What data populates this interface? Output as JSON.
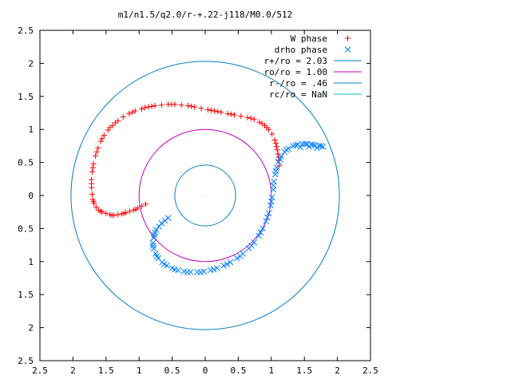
{
  "chart_data": {
    "type": "scatter",
    "title": "m1/n1.5/q2.0/r-+.22-j118/M0.0/512",
    "xlabel": "",
    "ylabel": "",
    "xlim": [
      -2.5,
      2.5
    ],
    "ylim": [
      -2.5,
      2.5
    ],
    "x_ticks": [
      -2.5,
      -2,
      -1.5,
      -1,
      -0.5,
      0,
      0.5,
      1,
      1.5,
      2,
      2.5
    ],
    "y_ticks": [
      -2.5,
      -2,
      -1.5,
      -1,
      -0.5,
      0,
      0.5,
      1,
      1.5,
      2,
      2.5
    ],
    "x_tick_labels": [
      "2.5",
      "2",
      "1.5",
      "1",
      "0.5",
      "0",
      "0.5",
      "1",
      "1.5",
      "2",
      "2.5"
    ],
    "y_tick_labels": [
      "2.5",
      "2",
      "1.5",
      "1",
      "0.5",
      "0",
      "0.5",
      "1",
      "1.5",
      "2",
      "2.5"
    ],
    "grid": false,
    "legend_position": "top-right",
    "series": [
      {
        "name": "W phase",
        "marker": "plus",
        "color": "#ff0000",
        "points": [
          [
            -1.62,
            0.72
          ],
          [
            -1.66,
            0.6
          ],
          [
            -1.69,
            0.48
          ],
          [
            -1.71,
            0.36
          ],
          [
            -1.72,
            0.24
          ],
          [
            -1.72,
            0.12
          ],
          [
            -1.71,
            0.02
          ],
          [
            -1.7,
            -0.06
          ],
          [
            -1.68,
            -0.12
          ],
          [
            -1.65,
            -0.18
          ],
          [
            -1.61,
            -0.22
          ],
          [
            -1.56,
            -0.25
          ],
          [
            -1.5,
            -0.27
          ],
          [
            -1.44,
            -0.29
          ],
          [
            -1.38,
            -0.3
          ],
          [
            -1.32,
            -0.29
          ],
          [
            -1.26,
            -0.28
          ],
          [
            -1.2,
            -0.26
          ],
          [
            -1.14,
            -0.24
          ],
          [
            -1.08,
            -0.22
          ],
          [
            -1.02,
            -0.19
          ],
          [
            -0.96,
            -0.16
          ],
          [
            -0.9,
            -0.13
          ],
          [
            -1.58,
            0.82
          ],
          [
            -1.53,
            0.91
          ],
          [
            -1.47,
            0.99
          ],
          [
            -1.4,
            1.06
          ],
          [
            -1.32,
            1.13
          ],
          [
            -1.24,
            1.19
          ],
          [
            -1.15,
            1.24
          ],
          [
            -1.06,
            1.28
          ],
          [
            -0.96,
            1.31
          ],
          [
            -0.86,
            1.34
          ],
          [
            -0.76,
            1.36
          ],
          [
            -0.66,
            1.37
          ],
          [
            -0.56,
            1.38
          ],
          [
            -0.46,
            1.38
          ],
          [
            -0.36,
            1.37
          ],
          [
            -0.26,
            1.36
          ],
          [
            -0.16,
            1.34
          ],
          [
            -0.06,
            1.32
          ],
          [
            0.04,
            1.3
          ],
          [
            0.14,
            1.28
          ],
          [
            0.24,
            1.26
          ],
          [
            0.34,
            1.24
          ],
          [
            0.44,
            1.22
          ],
          [
            0.54,
            1.2
          ],
          [
            0.64,
            1.18
          ],
          [
            0.74,
            1.15
          ],
          [
            0.82,
            1.11
          ],
          [
            0.9,
            1.06
          ],
          [
            0.96,
            1.0
          ],
          [
            1.01,
            0.93
          ],
          [
            1.05,
            0.84
          ],
          [
            1.08,
            0.74
          ],
          [
            1.1,
            0.63
          ],
          [
            1.11,
            0.53
          ],
          [
            1.12,
            0.45
          ],
          [
            -1.64,
            0.66
          ],
          [
            -1.7,
            0.42
          ],
          [
            -1.72,
            0.18
          ],
          [
            -1.69,
            -0.09
          ],
          [
            -1.58,
            -0.24
          ],
          [
            -1.41,
            -0.3
          ],
          [
            -1.23,
            -0.27
          ],
          [
            -1.05,
            -0.21
          ],
          [
            -1.56,
            0.86
          ],
          [
            -1.36,
            1.1
          ],
          [
            -1.1,
            1.26
          ],
          [
            -0.81,
            1.35
          ],
          [
            -0.51,
            1.38
          ],
          [
            -0.21,
            1.35
          ],
          [
            0.09,
            1.29
          ],
          [
            0.39,
            1.23
          ],
          [
            0.69,
            1.17
          ],
          [
            0.93,
            1.03
          ],
          [
            1.07,
            0.79
          ],
          [
            1.11,
            0.58
          ],
          [
            -1.44,
            1.03
          ],
          [
            -0.91,
            1.33
          ],
          [
            0.19,
            1.27
          ],
          [
            0.86,
            1.09
          ],
          [
            1.09,
            0.69
          ]
        ]
      },
      {
        "name": "drho phase",
        "marker": "cross",
        "color": "#0080ff",
        "points": [
          [
            -0.76,
            -0.56
          ],
          [
            -0.78,
            -0.64
          ],
          [
            -0.79,
            -0.72
          ],
          [
            -0.78,
            -0.8
          ],
          [
            -0.75,
            -0.88
          ],
          [
            -0.71,
            -0.95
          ],
          [
            -0.65,
            -1.01
          ],
          [
            -0.58,
            -1.06
          ],
          [
            -0.5,
            -1.1
          ],
          [
            -0.41,
            -1.13
          ],
          [
            -0.32,
            -1.15
          ],
          [
            -0.22,
            -1.16
          ],
          [
            -0.12,
            -1.16
          ],
          [
            -0.02,
            -1.15
          ],
          [
            0.08,
            -1.13
          ],
          [
            0.18,
            -1.1
          ],
          [
            0.28,
            -1.06
          ],
          [
            0.38,
            -1.01
          ],
          [
            0.48,
            -0.95
          ],
          [
            0.57,
            -0.88
          ],
          [
            0.66,
            -0.8
          ],
          [
            0.74,
            -0.71
          ],
          [
            0.81,
            -0.61
          ],
          [
            0.87,
            -0.5
          ],
          [
            0.92,
            -0.39
          ],
          [
            0.96,
            -0.27
          ],
          [
            0.99,
            -0.15
          ],
          [
            1.01,
            -0.03
          ],
          [
            1.03,
            0.09
          ],
          [
            1.04,
            0.21
          ],
          [
            1.06,
            0.32
          ],
          [
            1.08,
            0.42
          ],
          [
            1.11,
            0.51
          ],
          [
            1.15,
            0.59
          ],
          [
            1.2,
            0.66
          ],
          [
            1.26,
            0.71
          ],
          [
            1.33,
            0.75
          ],
          [
            1.4,
            0.77
          ],
          [
            1.47,
            0.78
          ],
          [
            1.54,
            0.78
          ],
          [
            1.6,
            0.77
          ],
          [
            1.66,
            0.76
          ],
          [
            1.72,
            0.75
          ],
          [
            1.78,
            0.74
          ],
          [
            -0.74,
            -0.52
          ],
          [
            -0.7,
            -0.47
          ],
          [
            -0.66,
            -0.42
          ],
          [
            -0.61,
            -0.38
          ],
          [
            -0.56,
            -0.34
          ],
          [
            -0.77,
            -0.6
          ],
          [
            -0.79,
            -0.76
          ],
          [
            -0.73,
            -0.92
          ],
          [
            -0.62,
            -1.04
          ],
          [
            -0.46,
            -1.12
          ],
          [
            -0.27,
            -1.16
          ],
          [
            -0.07,
            -1.16
          ],
          [
            0.13,
            -1.12
          ],
          [
            0.33,
            -1.04
          ],
          [
            0.53,
            -0.92
          ],
          [
            0.7,
            -0.76
          ],
          [
            0.84,
            -0.56
          ],
          [
            0.94,
            -0.33
          ],
          [
            1.0,
            -0.09
          ],
          [
            1.03,
            0.15
          ],
          [
            1.07,
            0.37
          ],
          [
            1.13,
            0.55
          ],
          [
            1.23,
            0.69
          ],
          [
            1.37,
            0.76
          ],
          [
            1.51,
            0.78
          ],
          [
            1.63,
            0.77
          ],
          [
            1.75,
            0.75
          ],
          [
            1.69,
            0.72
          ],
          [
            1.57,
            0.74
          ],
          [
            1.44,
            0.73
          ]
        ]
      }
    ],
    "circles": [
      {
        "name": "r+/ro = 2.03",
        "radius": 2.03,
        "color": "#0080c0"
      },
      {
        "name": "ro/ro = 1.00",
        "radius": 1.0,
        "color": "#c000c0"
      },
      {
        "name": "r-/ro = .46",
        "radius": 0.46,
        "color": "#0080c0"
      },
      {
        "name": "rc/ro = NaN",
        "radius": null,
        "color": "#00c0c0"
      }
    ]
  }
}
